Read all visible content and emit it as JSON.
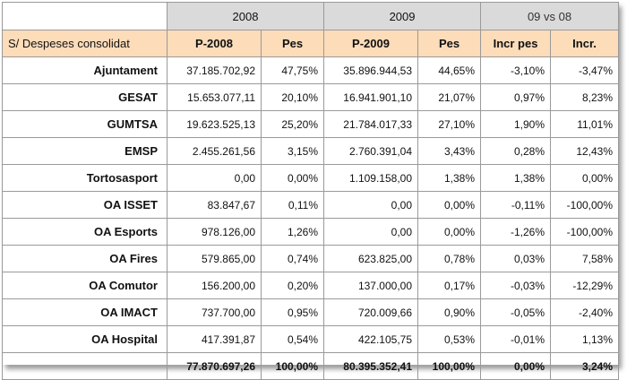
{
  "years": {
    "y1": "2008",
    "y2": "2009",
    "cmp": "09 vs 08"
  },
  "headers": [
    "S/ Despeses consolidat",
    "P-2008",
    "Pes",
    "P-2009",
    "Pes",
    "Incr pes",
    "Incr."
  ],
  "rows": [
    {
      "name": "Ajuntament",
      "p2008": "37.185.702,92",
      "pes2008": "47,75%",
      "p2009": "35.896.944,53",
      "pes2009": "44,65%",
      "incr_pes": "-3,10%",
      "incr": "-3,47%"
    },
    {
      "name": "GESAT",
      "p2008": "15.653.077,11",
      "pes2008": "20,10%",
      "p2009": "16.941.901,10",
      "pes2009": "21,07%",
      "incr_pes": "0,97%",
      "incr": "8,23%"
    },
    {
      "name": "GUMTSA",
      "p2008": "19.623.525,13",
      "pes2008": "25,20%",
      "p2009": "21.784.017,33",
      "pes2009": "27,10%",
      "incr_pes": "1,90%",
      "incr": "11,01%"
    },
    {
      "name": "EMSP",
      "p2008": "2.455.261,56",
      "pes2008": "3,15%",
      "p2009": "2.760.391,04",
      "pes2009": "3,43%",
      "incr_pes": "0,28%",
      "incr": "12,43%"
    },
    {
      "name": "Tortosasport",
      "p2008": "0,00",
      "pes2008": "0,00%",
      "p2009": "1.109.158,00",
      "pes2009": "1,38%",
      "incr_pes": "1,38%",
      "incr": "0,00%"
    },
    {
      "name": "OA ISSET",
      "p2008": "83.847,67",
      "pes2008": "0,11%",
      "p2009": "0,00",
      "pes2009": "0,00%",
      "incr_pes": "-0,11%",
      "incr": "-100,00%"
    },
    {
      "name": "OA Esports",
      "p2008": "978.126,00",
      "pes2008": "1,26%",
      "p2009": "0,00",
      "pes2009": "0,00%",
      "incr_pes": "-1,26%",
      "incr": "-100,00%"
    },
    {
      "name": "OA Fires",
      "p2008": "579.865,00",
      "pes2008": "0,74%",
      "p2009": "623.825,00",
      "pes2009": "0,78%",
      "incr_pes": "0,03%",
      "incr": "7,58%"
    },
    {
      "name": "OA Comutor",
      "p2008": "156.200,00",
      "pes2008": "0,20%",
      "p2009": "137.000,00",
      "pes2009": "0,17%",
      "incr_pes": "-0,03%",
      "incr": "-12,29%"
    },
    {
      "name": "OA IMACT",
      "p2008": "737.700,00",
      "pes2008": "0,95%",
      "p2009": "720.009,66",
      "pes2009": "0,90%",
      "incr_pes": "-0,05%",
      "incr": "-2,40%"
    },
    {
      "name": "OA Hospital",
      "p2008": "417.391,87",
      "pes2008": "0,54%",
      "p2009": "422.105,75",
      "pes2009": "0,53%",
      "incr_pes": "-0,01%",
      "incr": "1,13%"
    }
  ],
  "total": {
    "name": "",
    "p2008": "77.870.697,26",
    "pes2008": "100,00%",
    "p2009": "80.395.352,41",
    "pes2009": "100,00%",
    "incr_pes": "0,00%",
    "incr": "3,24%"
  },
  "colors": {
    "year_header_bg": "#dadada",
    "column_header_bg": "#fcdcb9",
    "border": "#9a9a9a"
  }
}
